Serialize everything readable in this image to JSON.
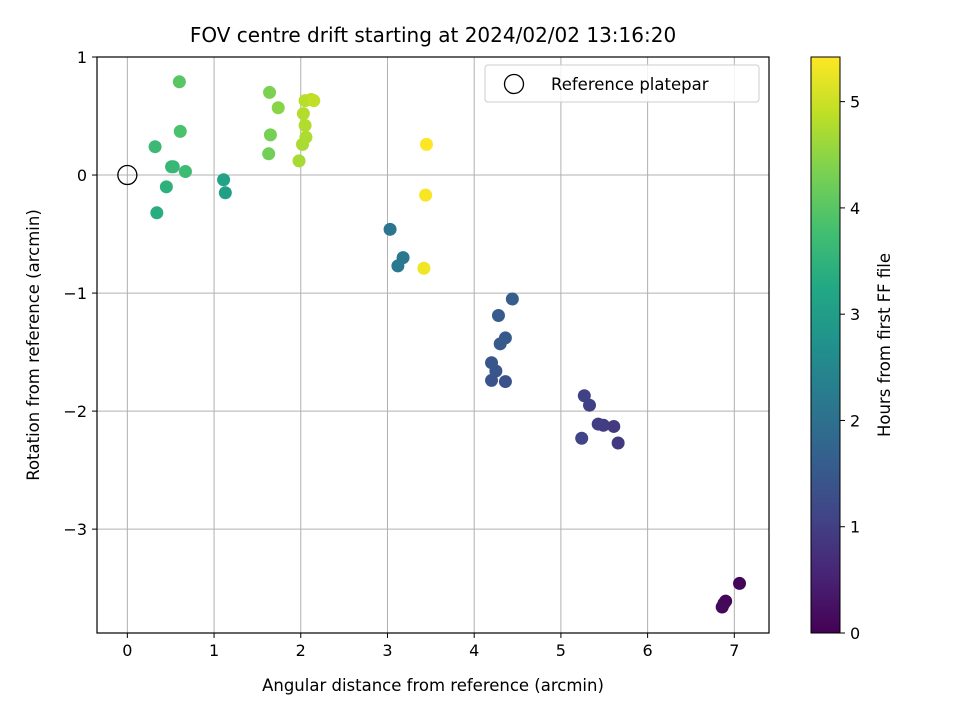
{
  "chart_data": {
    "type": "scatter",
    "title": "FOV centre drift starting at 2024/02/02 13:16:20",
    "xlabel": "Angular distance from reference (arcmin)",
    "ylabel": "Rotation from reference (arcmin)",
    "xlim": [
      -0.35,
      7.4
    ],
    "ylim": [
      -3.88,
      1.0
    ],
    "xticks": [
      0,
      1,
      2,
      3,
      4,
      5,
      6,
      7
    ],
    "yticks": [
      1,
      0,
      -1,
      -2,
      -3
    ],
    "ytick_labels": [
      "1",
      "0",
      "−1",
      "−2",
      "−3"
    ],
    "grid": true,
    "colormap": "viridis",
    "colorbar": {
      "label": "Hours from first FF file",
      "range": [
        0,
        5.42
      ],
      "ticks": [
        0,
        1,
        2,
        3,
        4,
        5
      ]
    },
    "legend": {
      "position": "top-right",
      "entries": [
        "Reference platepar"
      ]
    },
    "reference_point": {
      "x": 0,
      "y": 0
    },
    "series": [
      {
        "points": [
          {
            "x": 7.06,
            "y": -3.46,
            "t": 0.05
          },
          {
            "x": 6.9,
            "y": -3.61,
            "t": 0.08
          },
          {
            "x": 6.88,
            "y": -3.63,
            "t": 0.1
          },
          {
            "x": 6.86,
            "y": -3.66,
            "t": 0.12
          },
          {
            "x": 5.66,
            "y": -2.27,
            "t": 0.9
          },
          {
            "x": 5.61,
            "y": -2.13,
            "t": 0.92
          },
          {
            "x": 5.49,
            "y": -2.12,
            "t": 0.95
          },
          {
            "x": 5.43,
            "y": -2.11,
            "t": 0.98
          },
          {
            "x": 5.33,
            "y": -1.95,
            "t": 1.02
          },
          {
            "x": 5.27,
            "y": -1.87,
            "t": 1.05
          },
          {
            "x": 5.24,
            "y": -2.23,
            "t": 1.08
          },
          {
            "x": 4.36,
            "y": -1.75,
            "t": 1.35
          },
          {
            "x": 4.2,
            "y": -1.74,
            "t": 1.38
          },
          {
            "x": 4.25,
            "y": -1.66,
            "t": 1.42
          },
          {
            "x": 4.2,
            "y": -1.59,
            "t": 1.45
          },
          {
            "x": 4.3,
            "y": -1.43,
            "t": 1.5
          },
          {
            "x": 4.36,
            "y": -1.38,
            "t": 1.52
          },
          {
            "x": 4.28,
            "y": -1.19,
            "t": 1.55
          },
          {
            "x": 4.44,
            "y": -1.05,
            "t": 1.58
          },
          {
            "x": 3.03,
            "y": -0.46,
            "t": 2.1
          },
          {
            "x": 3.18,
            "y": -0.7,
            "t": 2.15
          },
          {
            "x": 3.12,
            "y": -0.77,
            "t": 2.18
          },
          {
            "x": 1.13,
            "y": -0.15,
            "t": 3.05
          },
          {
            "x": 1.11,
            "y": -0.04,
            "t": 3.1
          },
          {
            "x": 0.34,
            "y": -0.32,
            "t": 3.35
          },
          {
            "x": 0.45,
            "y": -0.1,
            "t": 3.45
          },
          {
            "x": 0.51,
            "y": 0.07,
            "t": 3.55
          },
          {
            "x": 0.53,
            "y": 0.07,
            "t": 3.6
          },
          {
            "x": 0.67,
            "y": 0.03,
            "t": 3.7
          },
          {
            "x": 0.32,
            "y": 0.24,
            "t": 3.65
          },
          {
            "x": 0.61,
            "y": 0.37,
            "t": 3.85
          },
          {
            "x": 0.6,
            "y": 0.79,
            "t": 4.0
          },
          {
            "x": 1.63,
            "y": 0.18,
            "t": 4.25
          },
          {
            "x": 1.65,
            "y": 0.34,
            "t": 4.3
          },
          {
            "x": 1.64,
            "y": 0.7,
            "t": 4.35
          },
          {
            "x": 1.74,
            "y": 0.57,
            "t": 4.45
          },
          {
            "x": 1.98,
            "y": 0.12,
            "t": 4.7
          },
          {
            "x": 2.02,
            "y": 0.26,
            "t": 4.72
          },
          {
            "x": 2.06,
            "y": 0.32,
            "t": 4.75
          },
          {
            "x": 2.05,
            "y": 0.42,
            "t": 4.78
          },
          {
            "x": 2.03,
            "y": 0.52,
            "t": 4.8
          },
          {
            "x": 2.05,
            "y": 0.63,
            "t": 4.82
          },
          {
            "x": 2.12,
            "y": 0.64,
            "t": 4.85
          },
          {
            "x": 2.15,
            "y": 0.63,
            "t": 4.9
          },
          {
            "x": 3.42,
            "y": -0.79,
            "t": 5.32
          },
          {
            "x": 3.44,
            "y": -0.17,
            "t": 5.38
          },
          {
            "x": 3.45,
            "y": 0.26,
            "t": 5.42
          }
        ]
      }
    ]
  }
}
